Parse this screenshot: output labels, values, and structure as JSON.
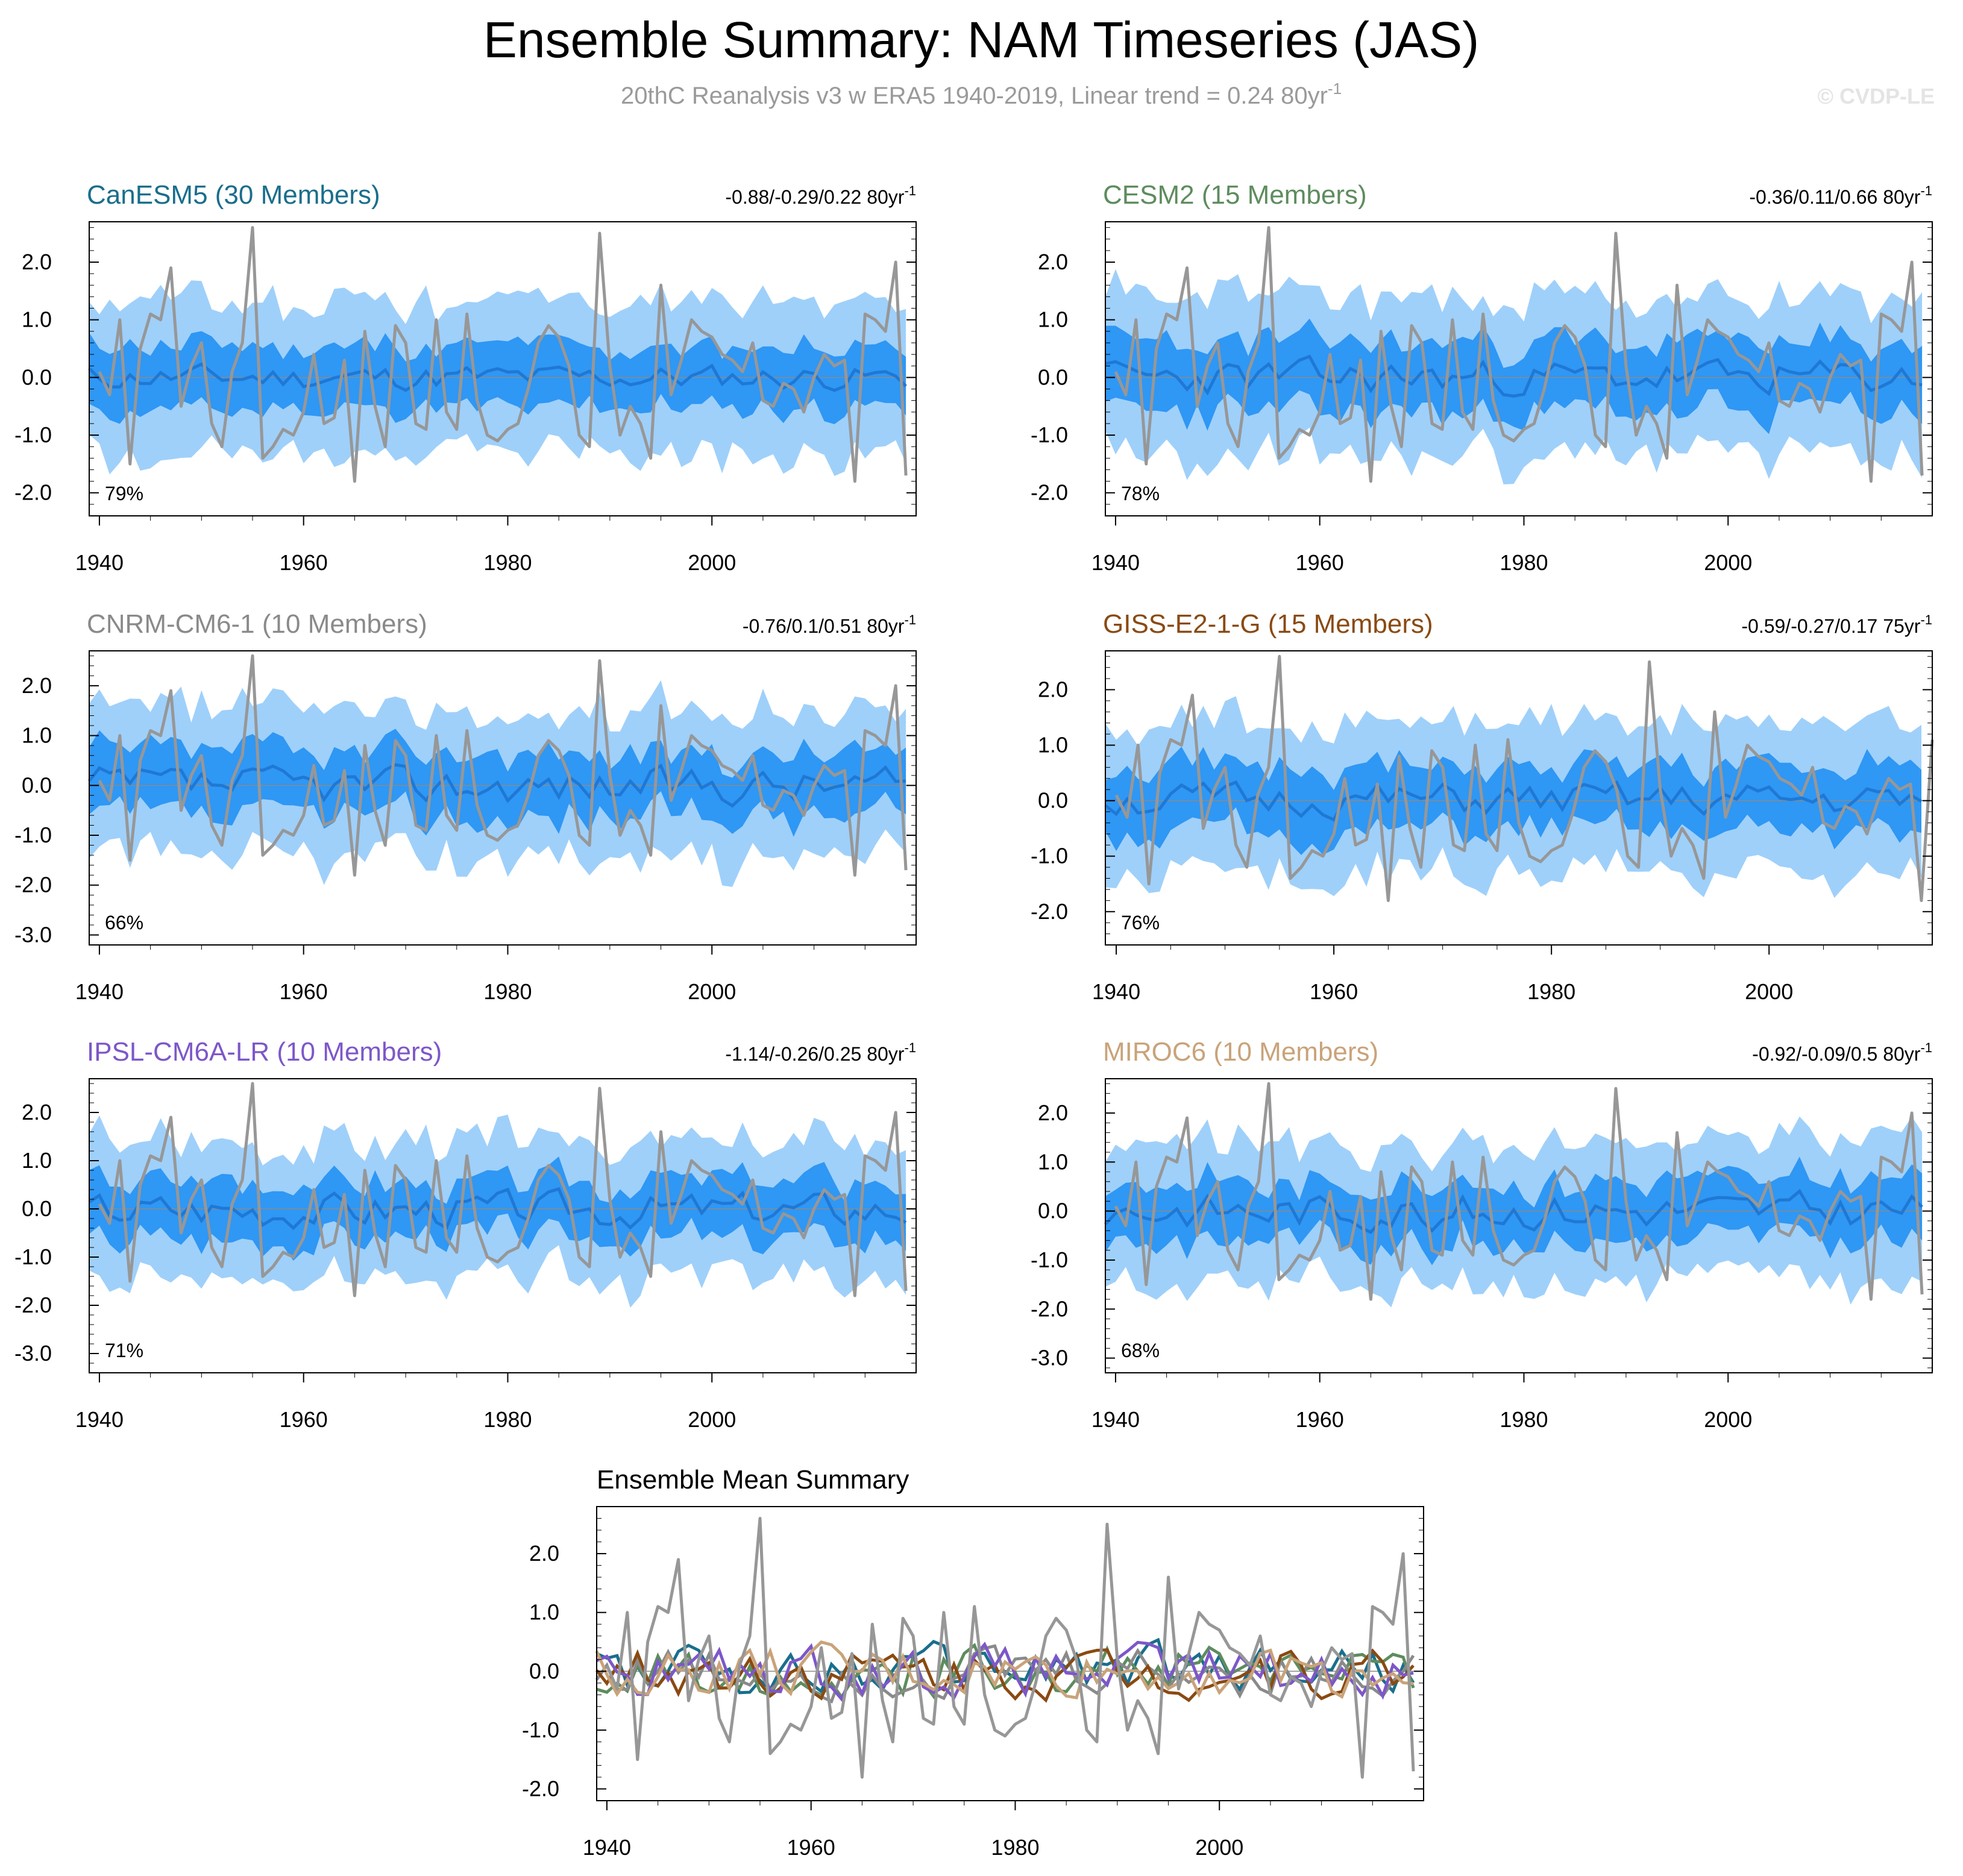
{
  "figure": {
    "title": "Ensemble Summary: NAM Timeseries (JAS)",
    "subtitle": "20thC Reanalysis v3 w ERA5 1940-2019, Linear trend = 0.24 80yr",
    "subtitle_sup": "-1",
    "watermark": "© CVDP-LE"
  },
  "colors": {
    "outer_band": "#9fd0fa",
    "inner_band": "#2f97f4",
    "ens_mean": "#1f78d4",
    "observed": "#979797",
    "zero_line": "#8a8a8a",
    "axis": "#000000"
  },
  "chart_data": [
    {
      "type": "line",
      "name": "CanESM5 (30 Members)",
      "name_color": "#1a6e8c",
      "stats": "-0.88/-0.29/0.22 80yr",
      "stats_sup": "-1",
      "percent": "79%",
      "xlim": [
        1939,
        2020
      ],
      "x_end": 2019,
      "ylim": [
        -2.4,
        2.7
      ],
      "yticks": [
        "2.0",
        "1.0",
        "0.0",
        "-1.0",
        "-2.0"
      ],
      "xticks": [
        "1940",
        "1960",
        "1980",
        "2000"
      ],
      "seed": 11,
      "mean_amp": 0.18,
      "inner_w": 0.55,
      "outer_w": 1.35
    },
    {
      "type": "line",
      "name": "CESM2 (15 Members)",
      "name_color": "#5e8c5e",
      "stats": "-0.36/0.11/0.66 80yr",
      "stats_sup": "-1",
      "percent": "78%",
      "xlim": [
        1939,
        2020
      ],
      "x_end": 2019,
      "ylim": [
        -2.4,
        2.7
      ],
      "yticks": [
        "2.0",
        "1.0",
        "0.0",
        "-1.0",
        "-2.0"
      ],
      "xticks": [
        "1940",
        "1960",
        "1980",
        "2000"
      ],
      "seed": 23,
      "mean_amp": 0.25,
      "inner_w": 0.6,
      "outer_w": 1.4
    },
    {
      "type": "line",
      "name": "CNRM-CM6-1 (10 Members)",
      "name_color": "#8a8a8a",
      "stats": "-0.76/0.1/0.51 80yr",
      "stats_sup": "-1",
      "percent": "66%",
      "xlim": [
        1939,
        2020
      ],
      "x_end": 2019,
      "ylim": [
        -3.2,
        2.7
      ],
      "yticks": [
        "2.0",
        "1.0",
        "0.0",
        "-1.0",
        "-2.0",
        "-3.0"
      ],
      "xticks": [
        "1940",
        "1960",
        "1980",
        "2000"
      ],
      "seed": 37,
      "mean_amp": 0.3,
      "inner_w": 0.65,
      "outer_w": 1.5
    },
    {
      "type": "line",
      "name": "GISS-E2-1-G (15 Members)",
      "name_color": "#8a4a12",
      "stats": "-0.59/-0.27/0.17 75yr",
      "stats_sup": "-1",
      "percent": "76%",
      "xlim": [
        1939,
        2015
      ],
      "x_end": 2014,
      "ylim": [
        -2.6,
        2.7
      ],
      "yticks": [
        "2.0",
        "1.0",
        "0.0",
        "-1.0",
        "-2.0"
      ],
      "xticks": [
        "1940",
        "1960",
        "1980",
        "2000"
      ],
      "seed": 51,
      "mean_amp": 0.25,
      "inner_w": 0.6,
      "outer_w": 1.4
    },
    {
      "type": "line",
      "name": "IPSL-CM6A-LR (10 Members)",
      "name_color": "#7d57c9",
      "stats": "-1.14/-0.26/0.25 80yr",
      "stats_sup": "-1",
      "percent": "71%",
      "xlim": [
        1939,
        2020
      ],
      "x_end": 2019,
      "ylim": [
        -3.4,
        2.7
      ],
      "yticks": [
        "2.0",
        "1.0",
        "0.0",
        "-1.0",
        "-2.0",
        "-3.0"
      ],
      "xticks": [
        "1940",
        "1960",
        "1980",
        "2000"
      ],
      "seed": 67,
      "mean_amp": 0.3,
      "inner_w": 0.6,
      "outer_w": 1.45
    },
    {
      "type": "line",
      "name": "MIROC6 (10 Members)",
      "name_color": "#c9a37a",
      "stats": "-0.92/-0.09/0.5 80yr",
      "stats_sup": "-1",
      "percent": "68%",
      "xlim": [
        1939,
        2020
      ],
      "x_end": 2019,
      "ylim": [
        -3.3,
        2.7
      ],
      "yticks": [
        "2.0",
        "1.0",
        "0.0",
        "-1.0",
        "-2.0",
        "-3.0"
      ],
      "xticks": [
        "1940",
        "1960",
        "1980",
        "2000"
      ],
      "seed": 83,
      "mean_amp": 0.3,
      "inner_w": 0.6,
      "outer_w": 1.45
    },
    {
      "type": "line",
      "name": "Ensemble Mean Summary",
      "name_color": "#000000",
      "xlim": [
        1939,
        2020
      ],
      "x_end": 2019,
      "ylim": [
        -2.2,
        2.8
      ],
      "yticks": [
        "2.0",
        "1.0",
        "0.0",
        "-1.0",
        "-2.0"
      ],
      "xticks": [
        "1940",
        "1960",
        "1980",
        "2000"
      ],
      "series_colors": [
        "#1a6e8c",
        "#5e8c5e",
        "#8a8a8a",
        "#8a4a12",
        "#7d57c9",
        "#c9a37a"
      ]
    }
  ],
  "observed": {
    "name": "20thC Reanalysis v3 w ERA5",
    "start_year": 1940,
    "values": [
      0.1,
      -0.3,
      1.0,
      -1.5,
      0.5,
      1.1,
      1.0,
      1.9,
      -0.5,
      0.2,
      0.6,
      -0.8,
      -1.2,
      0.1,
      0.6,
      2.6,
      -1.4,
      -1.2,
      -0.9,
      -1.0,
      -0.6,
      0.4,
      -0.8,
      -0.7,
      0.3,
      -1.8,
      0.8,
      -0.5,
      -1.2,
      0.9,
      0.6,
      -0.8,
      -0.9,
      1.0,
      -0.6,
      -0.9,
      1.1,
      -0.4,
      -1.0,
      -1.1,
      -0.9,
      -0.8,
      -0.2,
      0.6,
      0.9,
      0.7,
      0.2,
      -1.0,
      -1.2,
      2.5,
      0.2,
      -1.0,
      -0.5,
      -0.8,
      -1.4,
      1.6,
      -0.3,
      0.3,
      1.0,
      0.8,
      0.7,
      0.4,
      0.3,
      0.1,
      0.6,
      -0.4,
      -0.5,
      -0.1,
      -0.2,
      -0.6,
      0.0,
      0.4,
      0.2,
      0.3,
      -1.8,
      1.1,
      1.0,
      0.8,
      2.0,
      -1.7
    ]
  }
}
